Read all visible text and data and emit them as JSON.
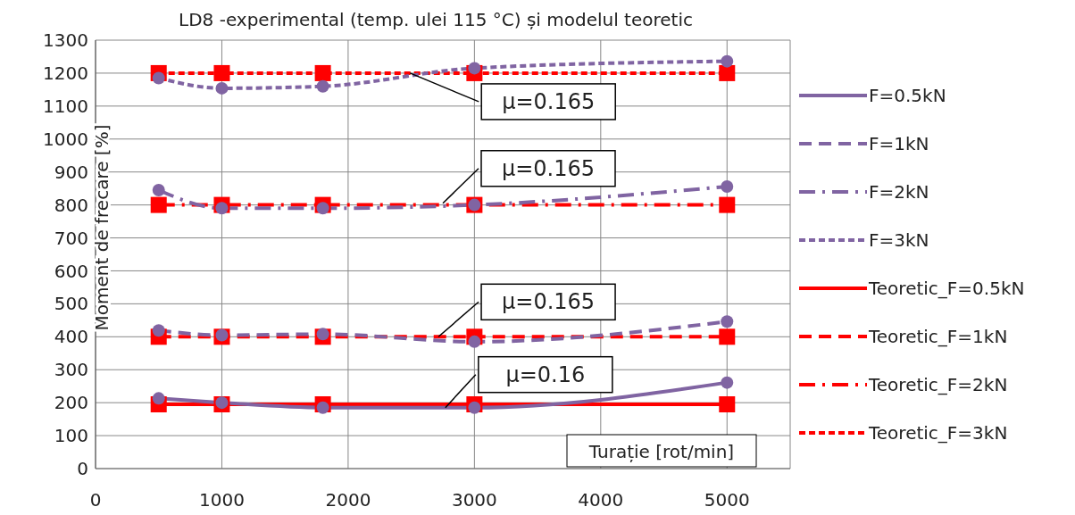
{
  "chart_data": {
    "type": "line",
    "title": "LD8 -experimental  (temp. ulei  115 °C) și modelul teoretic",
    "xlabel": "Turație [rot/min]",
    "ylabel": "Moment de frecare [%]",
    "x": [
      500,
      1000,
      1800,
      3000,
      5000
    ],
    "xlim": [
      0,
      5500
    ],
    "xticks": [
      0,
      1000,
      2000,
      3000,
      4000,
      5000
    ],
    "ylim": [
      0,
      1300
    ],
    "yticks": [
      0,
      100,
      200,
      300,
      400,
      500,
      600,
      700,
      800,
      900,
      1000,
      1100,
      1200,
      1300
    ],
    "grid": true,
    "legend": "right",
    "series": [
      {
        "name": "F=0.5kN",
        "color": "#8064a2",
        "marker": "circle",
        "line_style": "solid",
        "values": [
          213,
          200,
          185,
          185,
          261
        ]
      },
      {
        "name": "F=1kN",
        "color": "#8064a2",
        "marker": "circle",
        "line_style": "dashed",
        "values": [
          419,
          405,
          408,
          385,
          446
        ]
      },
      {
        "name": "F=2kN",
        "color": "#8064a2",
        "marker": "circle",
        "line_style": "dashdot",
        "values": [
          845,
          790,
          790,
          800,
          856
        ]
      },
      {
        "name": "F=3kN",
        "color": "#8064a2",
        "marker": "circle",
        "line_style": "dotted",
        "values": [
          1185,
          1154,
          1160,
          1215,
          1236
        ]
      },
      {
        "name": "Teoretic_F=0.5kN",
        "color": "#ff0000",
        "marker": "square",
        "line_style": "solid",
        "values": [
          195,
          195,
          195,
          195,
          195
        ]
      },
      {
        "name": "Teoretic_F=1kN",
        "color": "#ff0000",
        "marker": "square",
        "line_style": "dashed",
        "values": [
          400,
          400,
          400,
          400,
          400
        ]
      },
      {
        "name": "Teoretic_F=2kN",
        "color": "#ff0000",
        "marker": "square",
        "line_style": "dashdot",
        "values": [
          800,
          800,
          800,
          800,
          800
        ]
      },
      {
        "name": "Teoretic_F=3kN",
        "color": "#ff0000",
        "marker": "square",
        "line_style": "dotted",
        "values": [
          1200,
          1200,
          1200,
          1200,
          1200
        ]
      }
    ],
    "annotations": [
      {
        "text": "μ=0.165",
        "x": 2490,
        "y": 1200
      },
      {
        "text": "μ=0.165",
        "x": 2750,
        "y": 805
      },
      {
        "text": "μ=0.165",
        "x": 2715,
        "y": 400
      },
      {
        "text": "μ=0.16",
        "x": 2770,
        "y": 185
      }
    ]
  }
}
